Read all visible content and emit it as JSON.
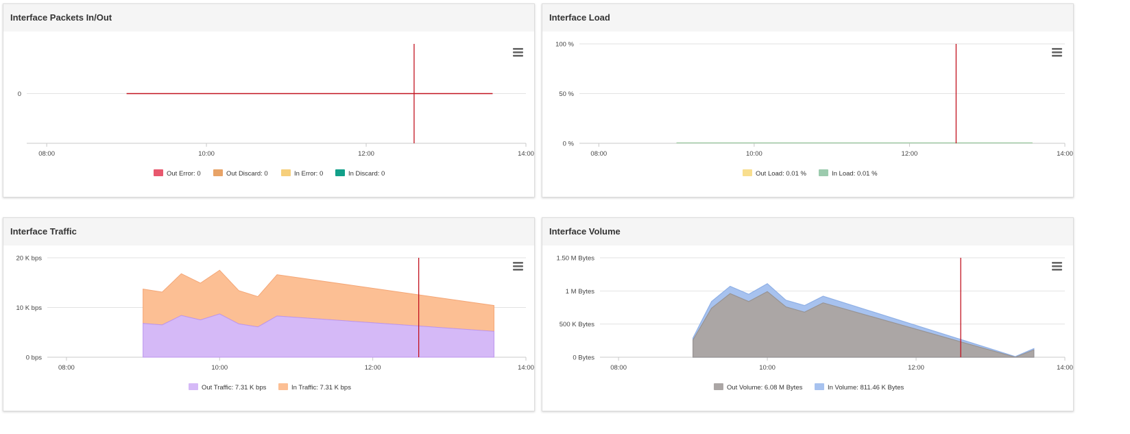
{
  "chart_data": [
    {
      "id": "packets",
      "type": "line",
      "title": "Interface Packets In/Out",
      "x_ticks": [
        "08:00",
        "10:00",
        "12:00",
        "14:00"
      ],
      "y_ticks": [
        "0"
      ],
      "ylim": [
        -1,
        1
      ],
      "xlim": [
        "07:45",
        "14:00"
      ],
      "marker_time": "12:36",
      "marker_color": "#c1121f",
      "series": [
        {
          "name": "Out Error: 0",
          "color": "#e8586e",
          "x": [
            "09:00",
            "13:35"
          ],
          "y": [
            0,
            0
          ]
        },
        {
          "name": "Out Discard: 0",
          "color": "#e8a367",
          "x": [],
          "y": []
        },
        {
          "name": "In Error: 0",
          "color": "#f6cf7b",
          "x": [],
          "y": []
        },
        {
          "name": "In Discard: 0",
          "color": "#12a089",
          "x": [],
          "y": []
        }
      ],
      "legend_position": "bottom",
      "grid": true
    },
    {
      "id": "load",
      "type": "area",
      "title": "Interface Load",
      "x_ticks": [
        "08:00",
        "10:00",
        "12:00",
        "14:00"
      ],
      "y_ticks": [
        "100 %",
        "50 %",
        "0 %"
      ],
      "ylim": [
        0,
        100
      ],
      "xlim": [
        "07:45",
        "14:00"
      ],
      "marker_time": "12:36",
      "marker_color": "#c1121f",
      "series": [
        {
          "name": "Out Load: 0.01 %",
          "color": "#f8de8e",
          "x": [
            "09:00",
            "13:35"
          ],
          "y": [
            0.01,
            0.01
          ]
        },
        {
          "name": "In Load: 0.01 %",
          "color": "#9ccbae",
          "x": [
            "09:00",
            "13:35"
          ],
          "y": [
            0.01,
            0.01
          ]
        }
      ],
      "legend_position": "bottom",
      "grid": true
    },
    {
      "id": "traffic",
      "type": "area",
      "title": "Interface Traffic",
      "x_ticks": [
        "08:00",
        "10:00",
        "12:00",
        "14:00"
      ],
      "y_ticks": [
        "20 K bps",
        "10 K bps",
        "0 bps"
      ],
      "ylim": [
        0,
        20000
      ],
      "xlim": [
        "07:45",
        "14:00"
      ],
      "marker_time": "12:36",
      "marker_color": "#c1121f",
      "stacked": true,
      "series": [
        {
          "name": "Out Traffic: 7.31 K bps",
          "color": "#d5b9f7",
          "x": [
            "09:00",
            "09:15",
            "09:30",
            "09:45",
            "10:00",
            "10:15",
            "10:30",
            "10:45",
            "13:35"
          ],
          "y": [
            6800,
            6500,
            8400,
            7500,
            8700,
            6700,
            6100,
            8300,
            5200
          ]
        },
        {
          "name": "In Traffic: 7.31 K bps",
          "color": "#fcbf94",
          "x": [
            "09:00",
            "09:15",
            "09:30",
            "09:45",
            "10:00",
            "10:15",
            "10:30",
            "10:45",
            "13:35"
          ],
          "y": [
            6900,
            6600,
            8400,
            7400,
            8800,
            6700,
            6100,
            8300,
            5200
          ]
        }
      ],
      "legend_position": "bottom",
      "grid": true
    },
    {
      "id": "volume",
      "type": "area",
      "title": "Interface Volume",
      "x_ticks": [
        "08:00",
        "10:00",
        "12:00",
        "14:00"
      ],
      "y_ticks": [
        "1.50 M Bytes",
        "1 M Bytes",
        "500 K Bytes",
        "0 Bytes"
      ],
      "ylim": [
        0,
        1500000
      ],
      "xlim": [
        "07:45",
        "14:00"
      ],
      "marker_time": "12:36",
      "marker_color": "#c1121f",
      "series": [
        {
          "name": "Out Volume: 6.08 M Bytes",
          "color": "#aba6a5",
          "x": [
            "09:00",
            "09:15",
            "09:30",
            "09:45",
            "10:00",
            "10:15",
            "10:30",
            "10:45",
            "13:20",
            "13:35"
          ],
          "y": [
            260000,
            740000,
            960000,
            840000,
            990000,
            760000,
            680000,
            820000,
            0,
            110000
          ]
        },
        {
          "name": "In Volume: 811.46 K Bytes",
          "color": "#a7c2ef",
          "x": [
            "09:00",
            "09:15",
            "09:30",
            "09:45",
            "10:00",
            "10:15",
            "10:30",
            "10:45",
            "13:20",
            "13:35"
          ],
          "y": [
            290000,
            840000,
            1070000,
            950000,
            1110000,
            860000,
            780000,
            920000,
            10000,
            130000
          ]
        }
      ],
      "legend_position": "bottom",
      "grid": true
    }
  ]
}
